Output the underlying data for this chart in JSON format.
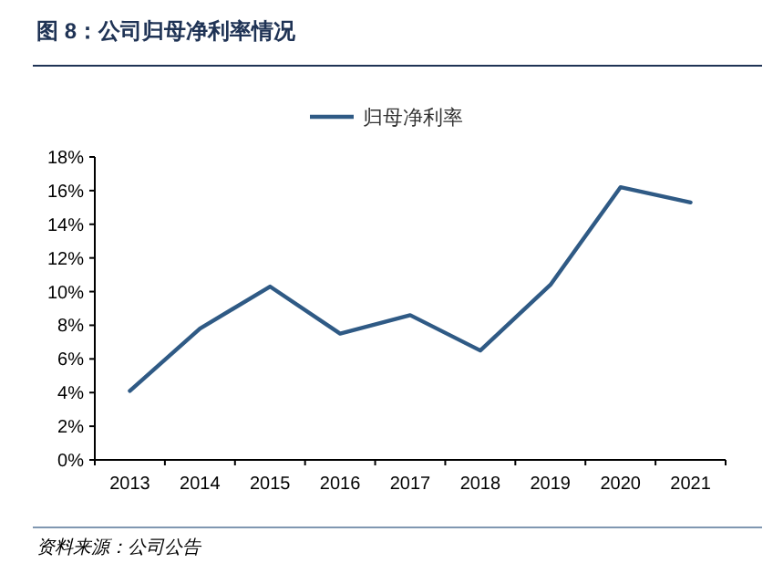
{
  "chart_data": {
    "type": "line",
    "title": "图 8：公司归母净利率情况",
    "categories": [
      "2013",
      "2014",
      "2015",
      "2016",
      "2017",
      "2018",
      "2019",
      "2020",
      "2021"
    ],
    "series": [
      {
        "name": "归母净利率",
        "color": "#2f5a85",
        "values": [
          4.1,
          7.8,
          10.3,
          7.5,
          8.6,
          6.5,
          10.4,
          16.2,
          15.3
        ]
      }
    ],
    "ylim": [
      0,
      18
    ],
    "yticks": [
      {
        "value": 0,
        "label": "0%"
      },
      {
        "value": 2,
        "label": "2%"
      },
      {
        "value": 4,
        "label": "4%"
      },
      {
        "value": 6,
        "label": "6%"
      },
      {
        "value": 8,
        "label": "8%"
      },
      {
        "value": 10,
        "label": "10%"
      },
      {
        "value": 12,
        "label": "12%"
      },
      {
        "value": 14,
        "label": "14%"
      },
      {
        "value": 16,
        "label": "16%"
      },
      {
        "value": 18,
        "label": "18%"
      }
    ],
    "legend": "top",
    "grid": false,
    "marker": "none",
    "line_style": "solid",
    "annotations": [
      "资料来源：公司公告"
    ]
  }
}
